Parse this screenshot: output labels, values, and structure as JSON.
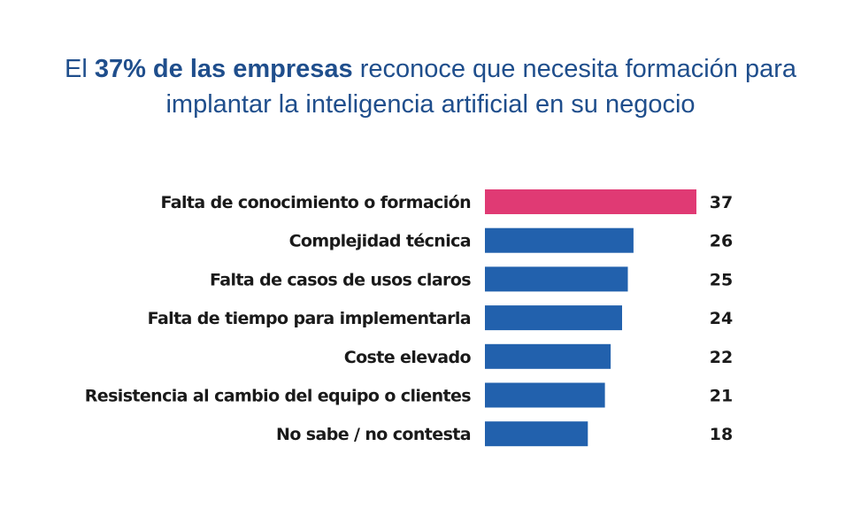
{
  "title": {
    "prefix": "El ",
    "highlight": "37% de las empresas",
    "line1_rest": " reconoce que necesita formación para",
    "line2": "implantar la inteligencia artificial en su negocio"
  },
  "colors": {
    "title": "#1f4e8c",
    "highlight_bar": "#e03a74",
    "bar": "#2261ad",
    "text": "#1a1a1a"
  },
  "chart_data": {
    "type": "bar",
    "orientation": "horizontal",
    "title": "El 37% de las empresas reconoce que necesita formación para implantar la inteligencia artificial en su negocio",
    "xlabel": "",
    "ylabel": "",
    "xlim": [
      0,
      37
    ],
    "grid": false,
    "legend": "none",
    "categories": [
      "Falta de conocimiento o formación",
      "Complejidad técnica",
      "Falta de casos de usos claros",
      "Falta de tiempo para implementarla",
      "Coste elevado",
      "Resistencia al cambio del equipo o clientes",
      "No sabe / no contesta"
    ],
    "values": [
      37,
      26,
      25,
      24,
      22,
      21,
      18
    ],
    "highlight_index": 0
  }
}
